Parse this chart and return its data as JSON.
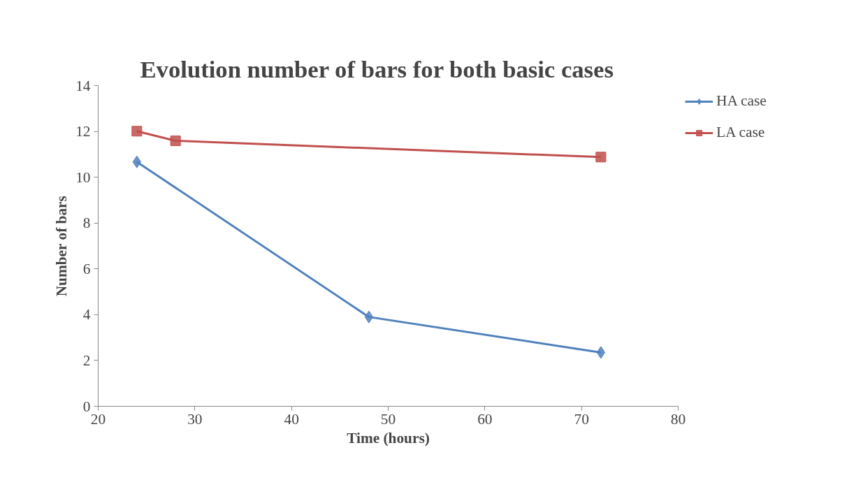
{
  "chart_data": {
    "type": "line",
    "title": "Evolution number of bars for both basic cases",
    "xlabel": "Time (hours)",
    "ylabel": "Number of bars",
    "series": [
      {
        "name": "HA case",
        "color": "#4f81bd",
        "marker": "diamond",
        "x": [
          24,
          48,
          72
        ],
        "values": [
          10.67,
          3.9,
          2.35
        ]
      },
      {
        "name": "LA case",
        "color": "#c0504d",
        "marker": "square",
        "x": [
          24,
          28,
          72
        ],
        "values": [
          12.01,
          11.59,
          10.88
        ]
      }
    ],
    "xlim": [
      20,
      80
    ],
    "xticks": [
      20,
      30,
      40,
      50,
      60,
      70,
      80
    ],
    "ylim": [
      0,
      14
    ],
    "yticks": [
      0,
      2,
      4,
      6,
      8,
      10,
      12,
      14
    ],
    "grid": false,
    "legend": "top right",
    "line_style": "solid"
  }
}
